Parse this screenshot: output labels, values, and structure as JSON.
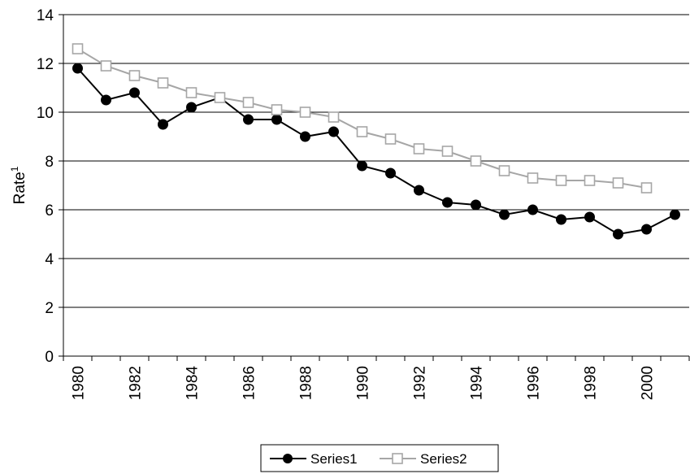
{
  "chart_data": {
    "type": "line",
    "title": "",
    "xlabel": "",
    "ylabel": "Rate",
    "ylabel_superscript": "1",
    "ylim": [
      0,
      14
    ],
    "yticks": [
      0,
      2,
      4,
      6,
      8,
      10,
      12,
      14
    ],
    "xlim": [
      1980,
      2001
    ],
    "xticks": [
      1980,
      1982,
      1984,
      1986,
      1988,
      1990,
      1992,
      1994,
      1996,
      1998,
      2000
    ],
    "grid": "horizontal",
    "legend_position": "bottom",
    "series": [
      {
        "name": "Series1",
        "color": "#000000",
        "marker": "filled-circle",
        "x": [
          1980,
          1981,
          1982,
          1983,
          1984,
          1985,
          1986,
          1987,
          1988,
          1989,
          1990,
          1991,
          1992,
          1993,
          1994,
          1995,
          1996,
          1997,
          1998,
          1999,
          2000,
          2001
        ],
        "values": [
          11.8,
          10.5,
          10.8,
          9.5,
          10.2,
          10.6,
          9.7,
          9.7,
          9.0,
          9.2,
          7.8,
          7.5,
          6.8,
          6.3,
          6.2,
          5.8,
          6.0,
          5.6,
          5.7,
          5.0,
          5.2,
          5.8
        ]
      },
      {
        "name": "Series2",
        "color": "#a6a6a6",
        "marker": "open-square",
        "x": [
          1980,
          1981,
          1982,
          1983,
          1984,
          1985,
          1986,
          1987,
          1988,
          1989,
          1990,
          1991,
          1992,
          1993,
          1994,
          1995,
          1996,
          1997,
          1998,
          1999,
          2000
        ],
        "values": [
          12.6,
          11.9,
          11.5,
          11.2,
          10.8,
          10.6,
          10.4,
          10.1,
          10.0,
          9.8,
          9.2,
          8.9,
          8.5,
          8.4,
          8.0,
          7.6,
          7.3,
          7.2,
          7.2,
          7.1,
          6.9
        ]
      }
    ]
  }
}
